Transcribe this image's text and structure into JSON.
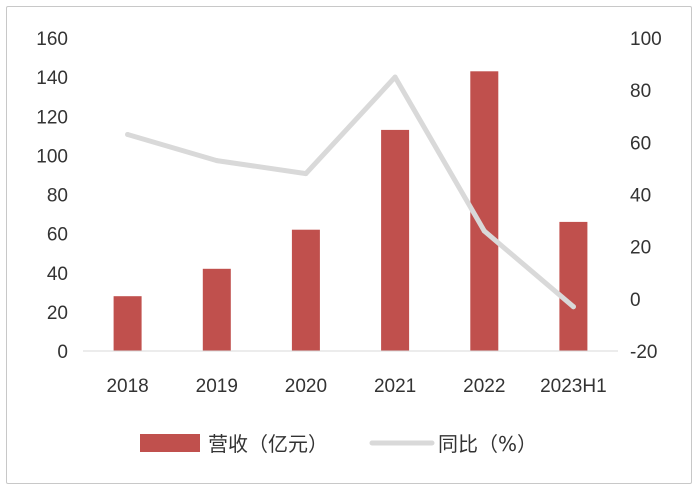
{
  "chart_data": {
    "type": "bar+line",
    "categories": [
      "2018",
      "2019",
      "2020",
      "2021",
      "2022",
      "2023H1"
    ],
    "series": [
      {
        "name": "营收（亿元）",
        "type": "bar",
        "axis": "left",
        "color": "#c0504d",
        "values": [
          28,
          42,
          62,
          113,
          143,
          66
        ]
      },
      {
        "name": "同比（%）",
        "type": "line",
        "axis": "right",
        "color": "#d9d9d9",
        "values": [
          63,
          53,
          48,
          85,
          26,
          -3
        ]
      }
    ],
    "y_left": {
      "min": 0,
      "max": 160,
      "step": 20,
      "ticks": [
        "0",
        "20",
        "40",
        "60",
        "80",
        "100",
        "120",
        "140",
        "160"
      ]
    },
    "y_right": {
      "min": -20,
      "max": 100,
      "step": 20,
      "ticks": [
        "-20",
        "0",
        "20",
        "40",
        "60",
        "80",
        "100"
      ]
    },
    "grid": false,
    "legend_position": "bottom"
  }
}
